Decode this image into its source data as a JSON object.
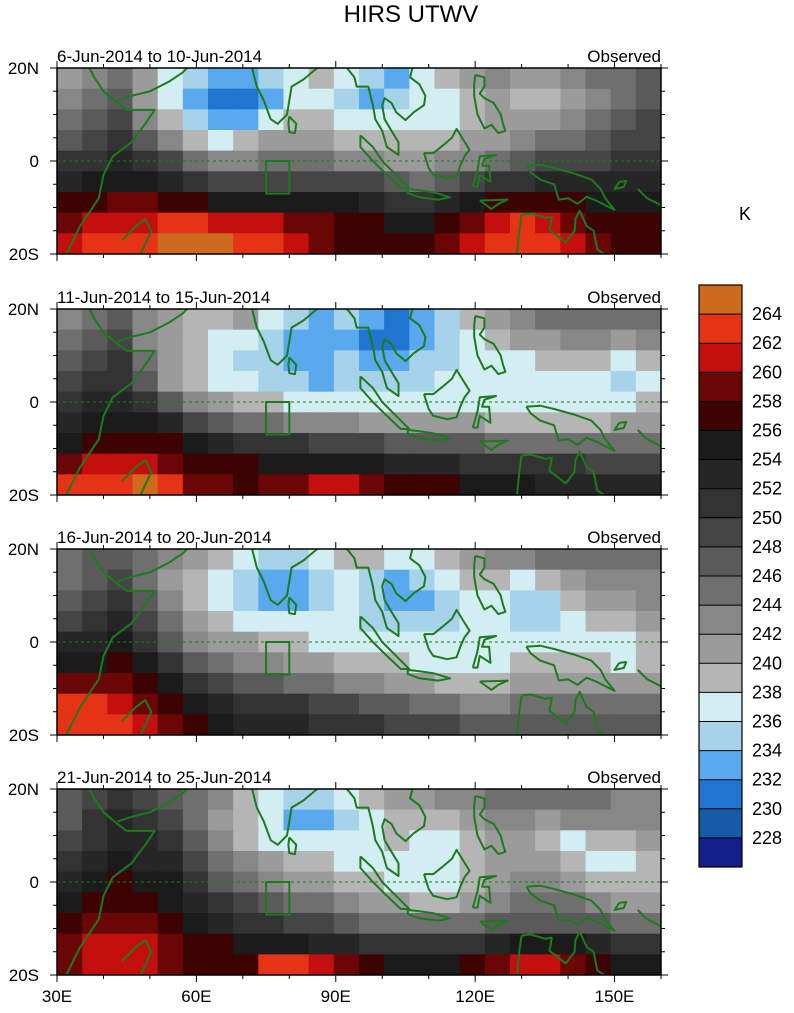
{
  "chart_data": {
    "type": "heatmap",
    "title": "HIRS UTWV",
    "units_label": "K",
    "xlim": [
      30,
      160
    ],
    "ylim": [
      -20,
      20
    ],
    "x_ticks": [
      30,
      60,
      90,
      120,
      150
    ],
    "x_tick_labels": [
      "30E",
      "60E",
      "90E",
      "120E",
      "150E"
    ],
    "y_ticks": [
      20,
      0,
      -20
    ],
    "y_tick_labels": [
      "20N",
      "0",
      "20S"
    ],
    "equator_line": "dashed",
    "study_box": {
      "lon": [
        75,
        80
      ],
      "lat": [
        -7,
        0
      ]
    },
    "colorbar": {
      "levels": [
        228,
        230,
        232,
        234,
        236,
        238,
        240,
        242,
        244,
        246,
        248,
        250,
        252,
        254,
        256,
        258,
        260,
        262,
        264
      ],
      "colors": [
        "#131f8a",
        "#145aa6",
        "#1f75cf",
        "#5aa9ee",
        "#a6d2ea",
        "#d2eef2",
        "#b5b5b5",
        "#9b9b9b",
        "#878787",
        "#6f6f6f",
        "#5a5a5a",
        "#454545",
        "#333333",
        "#262626",
        "#1b1b1b",
        "#3d0303",
        "#6a0606",
        "#c40f0f",
        "#e53316",
        "#cd6a1c"
      ]
    },
    "panels": [
      {
        "period": "6-Jun-2014 to 10-Jun-2014",
        "label": "Observed",
        "grid": [
          [
            240,
            242,
            244,
            240,
            236,
            234,
            232,
            232,
            234,
            236,
            238,
            236,
            234,
            232,
            236,
            238,
            240,
            242,
            240,
            240,
            242,
            244,
            244,
            246
          ],
          [
            242,
            244,
            246,
            240,
            236,
            232,
            230,
            230,
            232,
            236,
            236,
            234,
            232,
            234,
            236,
            236,
            238,
            240,
            238,
            238,
            240,
            242,
            244,
            246
          ],
          [
            244,
            246,
            248,
            242,
            238,
            234,
            232,
            232,
            236,
            238,
            238,
            236,
            236,
            236,
            236,
            236,
            238,
            240,
            240,
            240,
            242,
            244,
            246,
            248
          ],
          [
            246,
            248,
            250,
            246,
            242,
            238,
            236,
            238,
            240,
            240,
            240,
            238,
            238,
            238,
            238,
            238,
            240,
            240,
            242,
            244,
            244,
            246,
            248,
            248
          ],
          [
            250,
            250,
            252,
            250,
            248,
            244,
            242,
            242,
            244,
            244,
            244,
            242,
            242,
            240,
            240,
            242,
            242,
            244,
            246,
            248,
            248,
            248,
            250,
            250
          ],
          [
            252,
            254,
            254,
            254,
            252,
            250,
            248,
            248,
            248,
            248,
            248,
            248,
            248,
            246,
            244,
            246,
            248,
            250,
            250,
            252,
            252,
            252,
            252,
            252
          ],
          [
            256,
            256,
            258,
            258,
            256,
            256,
            254,
            254,
            254,
            254,
            254,
            254,
            252,
            250,
            250,
            252,
            254,
            256,
            256,
            256,
            256,
            254,
            254,
            254
          ],
          [
            258,
            260,
            260,
            260,
            262,
            262,
            260,
            260,
            260,
            258,
            258,
            256,
            256,
            254,
            254,
            256,
            258,
            260,
            262,
            260,
            258,
            256,
            256,
            256
          ],
          [
            260,
            262,
            262,
            262,
            264,
            264,
            264,
            262,
            262,
            260,
            258,
            256,
            256,
            256,
            256,
            258,
            260,
            262,
            262,
            262,
            260,
            258,
            256,
            256
          ]
        ]
      },
      {
        "period": "11-Jun-2014 to 15-Jun-2014",
        "label": "Observed",
        "grid": [
          [
            242,
            244,
            246,
            242,
            240,
            238,
            238,
            240,
            236,
            234,
            232,
            234,
            232,
            230,
            232,
            234,
            238,
            240,
            242,
            244,
            244,
            244,
            244,
            244
          ],
          [
            244,
            246,
            248,
            242,
            240,
            238,
            236,
            236,
            234,
            232,
            232,
            232,
            230,
            230,
            232,
            234,
            236,
            238,
            240,
            240,
            242,
            242,
            240,
            242
          ],
          [
            246,
            248,
            250,
            244,
            240,
            238,
            236,
            234,
            234,
            232,
            232,
            234,
            232,
            232,
            234,
            234,
            236,
            236,
            236,
            238,
            238,
            238,
            236,
            238
          ],
          [
            248,
            250,
            250,
            246,
            240,
            238,
            236,
            236,
            234,
            234,
            232,
            234,
            234,
            234,
            234,
            236,
            236,
            236,
            236,
            236,
            236,
            236,
            234,
            236
          ],
          [
            250,
            252,
            252,
            250,
            246,
            242,
            240,
            238,
            238,
            236,
            236,
            236,
            236,
            236,
            236,
            236,
            236,
            236,
            236,
            236,
            236,
            236,
            236,
            238
          ],
          [
            252,
            254,
            254,
            254,
            252,
            248,
            246,
            244,
            244,
            242,
            242,
            242,
            240,
            240,
            240,
            240,
            240,
            238,
            238,
            238,
            238,
            238,
            240,
            240
          ],
          [
            254,
            256,
            256,
            256,
            256,
            254,
            252,
            250,
            250,
            250,
            248,
            248,
            248,
            246,
            246,
            246,
            246,
            244,
            244,
            244,
            244,
            244,
            244,
            244
          ],
          [
            258,
            260,
            260,
            260,
            258,
            256,
            256,
            256,
            254,
            254,
            254,
            254,
            254,
            252,
            252,
            252,
            250,
            250,
            250,
            250,
            250,
            248,
            248,
            248
          ],
          [
            262,
            262,
            262,
            264,
            262,
            258,
            258,
            256,
            258,
            258,
            260,
            260,
            258,
            256,
            256,
            256,
            254,
            254,
            254,
            252,
            252,
            252,
            252,
            252
          ]
        ]
      },
      {
        "period": "16-Jun-2014 to 20-Jun-2014",
        "label": "Observed",
        "grid": [
          [
            244,
            246,
            246,
            244,
            242,
            240,
            238,
            236,
            234,
            234,
            236,
            238,
            238,
            236,
            236,
            238,
            240,
            242,
            242,
            244,
            244,
            244,
            244,
            244
          ],
          [
            244,
            246,
            248,
            244,
            240,
            238,
            236,
            234,
            232,
            232,
            234,
            236,
            234,
            232,
            234,
            236,
            238,
            238,
            236,
            238,
            240,
            242,
            242,
            242
          ],
          [
            246,
            248,
            250,
            246,
            242,
            238,
            236,
            234,
            232,
            232,
            234,
            236,
            234,
            232,
            232,
            234,
            236,
            236,
            234,
            234,
            238,
            240,
            240,
            242
          ],
          [
            248,
            250,
            252,
            248,
            244,
            240,
            238,
            236,
            236,
            236,
            236,
            236,
            234,
            234,
            234,
            234,
            236,
            236,
            234,
            234,
            236,
            238,
            238,
            240
          ],
          [
            252,
            252,
            254,
            250,
            246,
            242,
            240,
            240,
            238,
            238,
            236,
            236,
            236,
            236,
            236,
            236,
            236,
            236,
            236,
            236,
            236,
            236,
            236,
            238
          ],
          [
            254,
            254,
            256,
            254,
            250,
            246,
            244,
            242,
            242,
            240,
            240,
            238,
            238,
            238,
            236,
            236,
            236,
            236,
            238,
            238,
            238,
            238,
            236,
            238
          ],
          [
            258,
            258,
            258,
            256,
            254,
            250,
            248,
            246,
            246,
            244,
            244,
            242,
            242,
            240,
            240,
            238,
            238,
            238,
            240,
            240,
            240,
            240,
            240,
            240
          ],
          [
            262,
            262,
            260,
            258,
            256,
            254,
            252,
            250,
            250,
            250,
            248,
            248,
            246,
            246,
            244,
            244,
            242,
            242,
            244,
            244,
            244,
            244,
            244,
            244
          ],
          [
            262,
            262,
            262,
            260,
            258,
            256,
            254,
            252,
            252,
            252,
            250,
            250,
            250,
            248,
            248,
            248,
            246,
            246,
            246,
            246,
            246,
            246,
            246,
            246
          ]
        ]
      },
      {
        "period": "21-Jun-2014 to 25-Jun-2014",
        "label": "Observed",
        "grid": [
          [
            246,
            248,
            250,
            248,
            246,
            244,
            242,
            238,
            236,
            234,
            234,
            236,
            238,
            240,
            240,
            242,
            242,
            244,
            244,
            244,
            244,
            244,
            242,
            242
          ],
          [
            246,
            250,
            252,
            250,
            248,
            244,
            240,
            238,
            236,
            232,
            232,
            234,
            236,
            238,
            238,
            238,
            240,
            242,
            242,
            240,
            242,
            242,
            242,
            242
          ],
          [
            248,
            250,
            252,
            252,
            250,
            246,
            242,
            238,
            236,
            236,
            236,
            236,
            236,
            238,
            236,
            236,
            238,
            240,
            240,
            238,
            236,
            238,
            238,
            240
          ],
          [
            250,
            252,
            254,
            252,
            252,
            248,
            244,
            242,
            240,
            238,
            238,
            236,
            236,
            236,
            236,
            236,
            238,
            240,
            240,
            240,
            238,
            236,
            236,
            238
          ],
          [
            252,
            254,
            256,
            254,
            254,
            250,
            246,
            244,
            242,
            240,
            240,
            238,
            238,
            236,
            236,
            236,
            238,
            240,
            242,
            242,
            240,
            238,
            238,
            238
          ],
          [
            254,
            256,
            256,
            256,
            254,
            252,
            250,
            248,
            246,
            244,
            244,
            242,
            240,
            240,
            238,
            238,
            240,
            242,
            244,
            244,
            244,
            242,
            240,
            240
          ],
          [
            256,
            258,
            258,
            258,
            256,
            254,
            252,
            250,
            250,
            248,
            248,
            246,
            244,
            244,
            244,
            244,
            244,
            246,
            246,
            246,
            246,
            246,
            244,
            244
          ],
          [
            258,
            260,
            260,
            260,
            258,
            256,
            256,
            254,
            254,
            254,
            252,
            252,
            250,
            250,
            250,
            250,
            250,
            252,
            254,
            254,
            254,
            252,
            250,
            250
          ],
          [
            258,
            260,
            260,
            260,
            258,
            256,
            256,
            256,
            262,
            262,
            260,
            258,
            256,
            254,
            254,
            254,
            256,
            258,
            260,
            260,
            258,
            256,
            254,
            254
          ]
        ]
      }
    ]
  }
}
